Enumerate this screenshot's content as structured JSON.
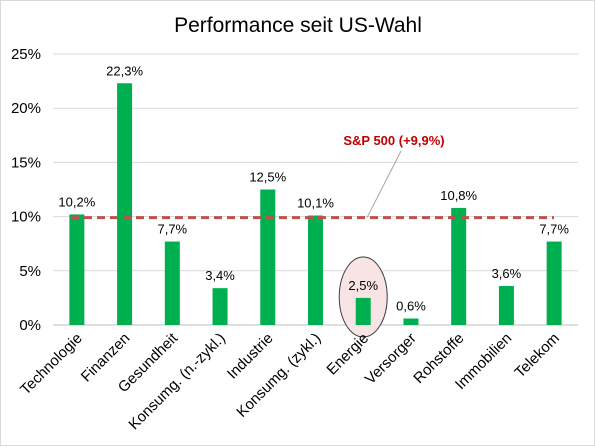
{
  "chart_data": {
    "type": "bar",
    "title": "Performance seit US-Wahl",
    "xlabel": "",
    "ylabel": "",
    "categories": [
      "Technologie",
      "Finanzen",
      "Gesundheit",
      "Konsumg. (n.-zykl.)",
      "Industrie",
      "Konsumg. (zykl.)",
      "Energie",
      "Versorger",
      "Rohstoffe",
      "Immobilien",
      "Telekom"
    ],
    "values": [
      10.2,
      22.3,
      7.7,
      3.4,
      12.5,
      10.1,
      2.5,
      0.6,
      10.8,
      3.6,
      7.7
    ],
    "value_labels": [
      "10,2%",
      "22,3%",
      "7,7%",
      "3,4%",
      "12,5%",
      "10,1%",
      "2,5%",
      "0,6%",
      "10,8%",
      "3,6%",
      "7,7%"
    ],
    "ylim": [
      0,
      25
    ],
    "yticks": [
      0,
      5,
      10,
      15,
      20,
      25
    ],
    "ytick_labels": [
      "0%",
      "5%",
      "10%",
      "15%",
      "20%",
      "25%"
    ],
    "grid": true,
    "legend": "none",
    "reference_line": {
      "value": 9.9,
      "label": "S&P 500 (+9,9%)"
    },
    "highlighted_category": "Energie",
    "colors": {
      "bar": "#00b050",
      "reference_line": "#c0504d",
      "reference_label": "#c00000",
      "highlight_fill": "#f8e4e4",
      "highlight_stroke": "#404040",
      "grid": "#d9d9d9"
    }
  }
}
